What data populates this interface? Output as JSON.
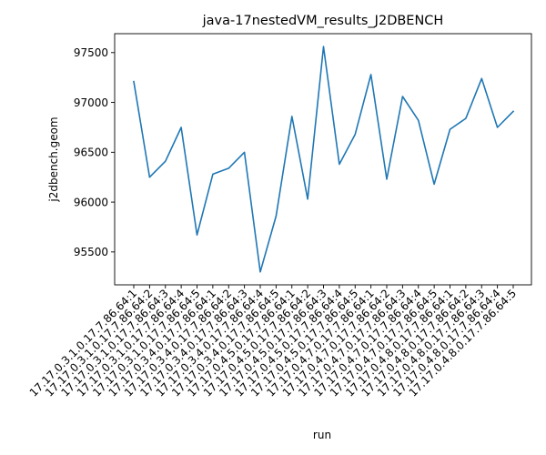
{
  "chart_data": {
    "type": "line",
    "title": "java-17nestedVM_results_J2DBENCH",
    "xlabel": "run",
    "ylabel": "j2dbench.geom",
    "categories": [
      "17.17.0.3.1.0.17.7.86.64:1",
      "17.17.0.3.1.0.17.7.86.64:2",
      "17.17.0.3.1.0.17.7.86.64:3",
      "17.17.0.3.1.0.17.7.86.64:4",
      "17.17.0.3.1.0.17.7.86.64:5",
      "17.17.0.3.4.0.17.7.86.64:1",
      "17.17.0.3.4.0.17.7.86.64:2",
      "17.17.0.3.4.0.17.7.86.64:3",
      "17.17.0.3.4.0.17.7.86.64:4",
      "17.17.0.3.4.0.17.7.86.64:5",
      "17.17.0.4.5.0.17.7.86.64:1",
      "17.17.0.4.5.0.17.7.86.64:2",
      "17.17.0.4.5.0.17.7.86.64:3",
      "17.17.0.4.5.0.17.7.86.64:4",
      "17.17.0.4.5.0.17.7.86.64:5",
      "17.17.0.4.7.0.17.7.86.64:1",
      "17.17.0.4.7.0.17.7.86.64:2",
      "17.17.0.4.7.0.17.7.86.64:3",
      "17.17.0.4.7.0.17.7.86.64:4",
      "17.17.0.4.7.0.17.7.86.64:5",
      "17.17.0.4.8.0.17.7.86.64:1",
      "17.17.0.4.8.0.17.7.86.64:2",
      "17.17.0.4.8.0.17.7.86.64:3",
      "17.17.0.4.8.0.17.7.86.64:4",
      "17.17.0.4.8.0.17.7.86.64:5"
    ],
    "series": [
      {
        "values": [
          97210,
          96250,
          96410,
          96750,
          95670,
          96280,
          96340,
          96500,
          95300,
          95860,
          96860,
          96030,
          97560,
          96380,
          96680,
          97280,
          96230,
          97060,
          96820,
          96180,
          96730,
          96840,
          97240,
          96750,
          96910
        ],
        "color": "#1f77b4"
      }
    ],
    "yticks": [
      95500,
      96000,
      96500,
      97000,
      97500
    ],
    "ylim": [
      95170,
      97690
    ],
    "grid": false,
    "legend": "none"
  }
}
